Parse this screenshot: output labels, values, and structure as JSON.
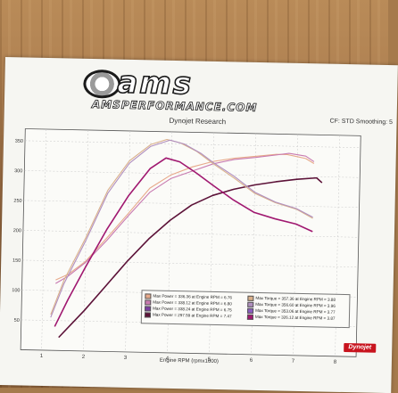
{
  "logo": {
    "main": "ams",
    "sub": "AMSPERFORMANCE.COM"
  },
  "title": "Dynojet Research",
  "cf_text": "CF: STD Smoothing: 5",
  "logo_badge": "Dynojet",
  "chart_data": {
    "type": "line",
    "xlabel": "Engine RPM (rpmx1000)",
    "xlim": [
      0.5,
      8.5
    ],
    "ylim": [
      0,
      370
    ],
    "x_ticks": [
      1,
      2,
      3,
      4,
      5,
      6,
      7,
      8
    ],
    "y_ticks": [
      50,
      100,
      150,
      200,
      250,
      300,
      350
    ],
    "grid": true,
    "legend_placement": "bottom-right",
    "series": [
      {
        "name": "Max Power = 336.36 at Engine RPM = 6.76",
        "color": "#e7a98a",
        "points": [
          [
            1.3,
            118
          ],
          [
            1.6,
            128
          ],
          [
            2.0,
            150
          ],
          [
            2.5,
            190
          ],
          [
            3.0,
            232
          ],
          [
            3.5,
            275
          ],
          [
            4.0,
            298
          ],
          [
            4.5,
            312
          ],
          [
            5.0,
            322
          ],
          [
            5.5,
            328
          ],
          [
            6.0,
            332
          ],
          [
            6.5,
            336
          ],
          [
            6.76,
            336
          ],
          [
            7.2,
            330
          ],
          [
            7.4,
            322
          ]
        ]
      },
      {
        "name": "Max Power = 338.12 at Engine RPM = 6.80",
        "color": "#c87ab0",
        "points": [
          [
            1.3,
            112
          ],
          [
            1.6,
            125
          ],
          [
            2.0,
            148
          ],
          [
            2.5,
            186
          ],
          [
            3.0,
            228
          ],
          [
            3.5,
            268
          ],
          [
            4.0,
            292
          ],
          [
            4.5,
            305
          ],
          [
            5.0,
            318
          ],
          [
            5.5,
            326
          ],
          [
            6.0,
            330
          ],
          [
            6.5,
            335
          ],
          [
            6.8,
            338
          ],
          [
            7.2,
            334
          ],
          [
            7.4,
            325
          ]
        ]
      },
      {
        "name": "Max Power = 297.59 at Engine RPM = 7.47",
        "color": "#5c1238",
        "points": [
          [
            1.4,
            22
          ],
          [
            1.7,
            45
          ],
          [
            2.0,
            68
          ],
          [
            2.5,
            110
          ],
          [
            3.0,
            152
          ],
          [
            3.5,
            190
          ],
          [
            4.0,
            222
          ],
          [
            4.5,
            248
          ],
          [
            5.0,
            265
          ],
          [
            5.5,
            276
          ],
          [
            6.0,
            284
          ],
          [
            6.5,
            290
          ],
          [
            7.0,
            295
          ],
          [
            7.47,
            298
          ],
          [
            7.6,
            290
          ]
        ]
      },
      {
        "name": "Max Torque = 357.36 at Engine RPM = 3.88",
        "color": "#d9b08a",
        "points": [
          [
            1.2,
            60
          ],
          [
            1.5,
            118
          ],
          [
            2.0,
            190
          ],
          [
            2.5,
            270
          ],
          [
            3.0,
            320
          ],
          [
            3.5,
            348
          ],
          [
            3.88,
            357
          ],
          [
            4.2,
            352
          ],
          [
            4.6,
            338
          ],
          [
            5.0,
            318
          ],
          [
            5.5,
            295
          ],
          [
            6.0,
            270
          ],
          [
            6.5,
            255
          ],
          [
            7.0,
            245
          ],
          [
            7.4,
            230
          ]
        ]
      },
      {
        "name": "Max Torque = 356.60 at Engine RPM = 3.96",
        "color": "#b08fbf",
        "points": [
          [
            1.2,
            55
          ],
          [
            1.5,
            112
          ],
          [
            2.0,
            185
          ],
          [
            2.5,
            265
          ],
          [
            3.0,
            316
          ],
          [
            3.5,
            345
          ],
          [
            3.96,
            356
          ],
          [
            4.3,
            350
          ],
          [
            4.7,
            335
          ],
          [
            5.0,
            320
          ],
          [
            5.5,
            298
          ],
          [
            6.0,
            272
          ],
          [
            6.5,
            256
          ],
          [
            7.0,
            246
          ],
          [
            7.4,
            232
          ]
        ]
      },
      {
        "name": "Max Torque = 326.12 at Engine RPM = 3.87",
        "color": "#a01870",
        "points": [
          [
            1.3,
            40
          ],
          [
            1.6,
            85
          ],
          [
            2.0,
            140
          ],
          [
            2.5,
            205
          ],
          [
            3.0,
            262
          ],
          [
            3.5,
            308
          ],
          [
            3.87,
            326
          ],
          [
            4.2,
            320
          ],
          [
            4.6,
            302
          ],
          [
            5.0,
            282
          ],
          [
            5.5,
            258
          ],
          [
            6.0,
            238
          ],
          [
            6.5,
            228
          ],
          [
            7.0,
            220
          ],
          [
            7.4,
            208
          ]
        ]
      }
    ],
    "legend": [
      {
        "text": "Max Power = 336.36 at Engine RPM = 6.76",
        "color": "#e7a98a"
      },
      {
        "text": "Max Torque = 357.36 at Engine RPM = 3.88",
        "color": "#d9b08a"
      },
      {
        "text": "Max Power = 338.12 at Engine RPM = 6.80",
        "color": "#c87ab0"
      },
      {
        "text": "Max Torque = 356.60 at Engine RPM = 3.96",
        "color": "#b08fbf"
      },
      {
        "text": "Max Power = 338.24 at Engine RPM = 6.75",
        "color": "#7a3da0"
      },
      {
        "text": "Max Torque = 353.06 at Engine RPM = 3.77",
        "color": "#8a5cc0"
      },
      {
        "text": "Max Power = 297.59 at Engine RPM = 7.47",
        "color": "#5c1238"
      },
      {
        "text": "Max Torque = 326.12 at Engine RPM = 3.87",
        "color": "#a01870"
      }
    ]
  }
}
